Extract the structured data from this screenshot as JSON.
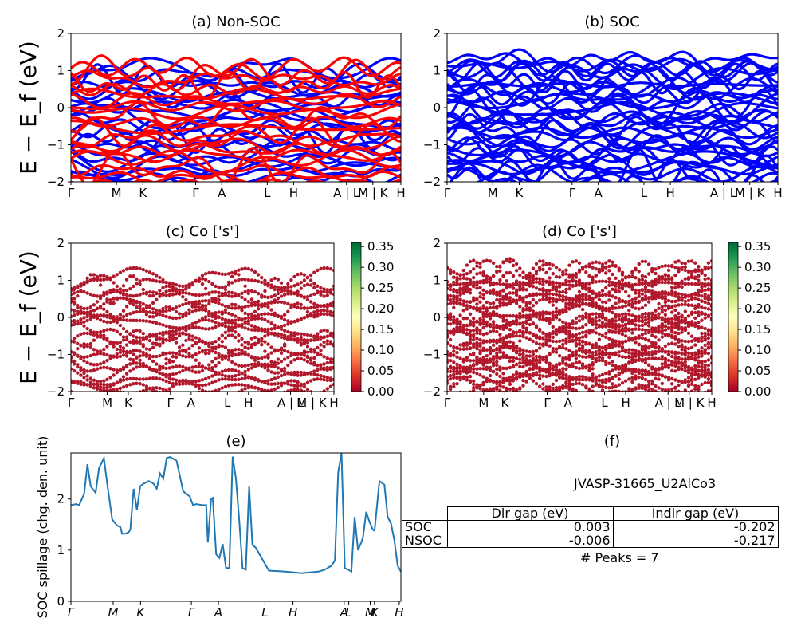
{
  "figure": {
    "jid": "JVASP-31665_U2AlCo3",
    "peaks_label": "# Peaks = 7"
  },
  "colors": {
    "nsoc_up": "#0000ff",
    "nsoc_dn": "#ff0000",
    "soc": "#0000ff",
    "spillage": "#1f77b4"
  },
  "chart_data": [
    {
      "id": "a",
      "type": "line",
      "title": "(a) Non-SOC",
      "ylabel": "E − E_f (eV)",
      "ylim": [
        -2,
        2
      ],
      "yticks": [
        "−2",
        "−1",
        "0",
        "1",
        "2"
      ],
      "xticks": [
        {
          "x": 0.0,
          "label": "Γ"
        },
        {
          "x": 0.138,
          "label": "M"
        },
        {
          "x": 0.218,
          "label": "K"
        },
        {
          "x": 0.378,
          "label": "Γ"
        },
        {
          "x": 0.457,
          "label": "A"
        },
        {
          "x": 0.595,
          "label": "L"
        },
        {
          "x": 0.675,
          "label": "H"
        },
        {
          "x": 0.835,
          "label": "A | L"
        },
        {
          "x": 0.915,
          "label": "M | K"
        },
        {
          "x": 1.0,
          "label": "H"
        }
      ],
      "series": [
        {
          "color_key": "nsoc_up"
        },
        {
          "color_key": "nsoc_dn"
        }
      ]
    },
    {
      "id": "b",
      "type": "line",
      "title": "(b) SOC",
      "ylim": [
        -2,
        2
      ],
      "yticks": [
        "−2",
        "−1",
        "0",
        "1",
        "2"
      ],
      "xticks": [
        {
          "x": 0.0,
          "label": "Γ"
        },
        {
          "x": 0.138,
          "label": "M"
        },
        {
          "x": 0.218,
          "label": "K"
        },
        {
          "x": 0.378,
          "label": "Γ"
        },
        {
          "x": 0.457,
          "label": "A"
        },
        {
          "x": 0.595,
          "label": "L"
        },
        {
          "x": 0.675,
          "label": "H"
        },
        {
          "x": 0.835,
          "label": "A | L"
        },
        {
          "x": 0.915,
          "label": "M | K"
        },
        {
          "x": 1.0,
          "label": "H"
        }
      ]
    },
    {
      "id": "c",
      "type": "scatter",
      "title": "(c)  Co ['s']",
      "ylabel": "E − E_f (eV)",
      "ylim": [
        -2,
        2
      ],
      "yticks": [
        "−2",
        "−1",
        "0",
        "1",
        "2"
      ],
      "xticks": [
        {
          "x": 0.0,
          "label": "Γ"
        },
        {
          "x": 0.138,
          "label": "M"
        },
        {
          "x": 0.218,
          "label": "K"
        },
        {
          "x": 0.378,
          "label": "Γ"
        },
        {
          "x": 0.457,
          "label": "A"
        },
        {
          "x": 0.595,
          "label": "L"
        },
        {
          "x": 0.675,
          "label": "H"
        },
        {
          "x": 0.835,
          "label": "A | L"
        },
        {
          "x": 0.915,
          "label": "M | K"
        },
        {
          "x": 1.0,
          "label": "H"
        }
      ],
      "colorbar": {
        "range": [
          0,
          0.36
        ],
        "ticks": [
          "0.00",
          "0.05",
          "0.10",
          "0.15",
          "0.20",
          "0.25",
          "0.30",
          "0.35"
        ]
      }
    },
    {
      "id": "d",
      "type": "scatter",
      "title": "(d) Co ['s']",
      "ylim": [
        -2,
        2
      ],
      "yticks": [
        "−2",
        "−1",
        "0",
        "1",
        "2"
      ],
      "xticks": [
        {
          "x": 0.0,
          "label": "Γ"
        },
        {
          "x": 0.138,
          "label": "M"
        },
        {
          "x": 0.218,
          "label": "K"
        },
        {
          "x": 0.378,
          "label": "Γ"
        },
        {
          "x": 0.457,
          "label": "A"
        },
        {
          "x": 0.595,
          "label": "L"
        },
        {
          "x": 0.675,
          "label": "H"
        },
        {
          "x": 0.835,
          "label": "A | L"
        },
        {
          "x": 0.915,
          "label": "M | K"
        },
        {
          "x": 1.0,
          "label": "H"
        }
      ],
      "colorbar": {
        "range": [
          0,
          0.36
        ],
        "ticks": [
          "0.00",
          "0.05",
          "0.10",
          "0.15",
          "0.20",
          "0.25",
          "0.30",
          "0.35"
        ]
      }
    },
    {
      "id": "e",
      "type": "line",
      "title": "(e)",
      "ylabel": "SOC spillage (chg. den. unit)",
      "ylim": [
        0,
        2.9
      ],
      "yticks": [
        0,
        1,
        2
      ],
      "xticks": [
        {
          "x": 0.0,
          "label": "Γ"
        },
        {
          "x": 0.128,
          "label": "M"
        },
        {
          "x": 0.211,
          "label": "K"
        },
        {
          "x": 0.365,
          "label": "Γ"
        },
        {
          "x": 0.447,
          "label": "A"
        },
        {
          "x": 0.588,
          "label": "L"
        },
        {
          "x": 0.673,
          "label": "H"
        },
        {
          "x": 0.828,
          "label": "A"
        },
        {
          "x": 0.842,
          "label": "L"
        },
        {
          "x": 0.907,
          "label": "M"
        },
        {
          "x": 0.92,
          "label": "K"
        },
        {
          "x": 0.995,
          "label": "H"
        }
      ],
      "x": [
        0,
        0.015,
        0.025,
        0.04,
        0.05,
        0.06,
        0.075,
        0.085,
        0.1,
        0.11,
        0.125,
        0.14,
        0.15,
        0.155,
        0.165,
        0.175,
        0.18,
        0.19,
        0.2,
        0.21,
        0.22,
        0.235,
        0.24,
        0.25,
        0.26,
        0.27,
        0.28,
        0.29,
        0.3,
        0.32,
        0.34,
        0.36,
        0.37,
        0.38,
        0.39,
        0.4,
        0.41,
        0.415,
        0.425,
        0.43,
        0.44,
        0.45,
        0.46,
        0.47,
        0.48,
        0.49,
        0.5,
        0.51,
        0.52,
        0.53,
        0.54,
        0.55,
        0.56,
        0.6,
        0.65,
        0.7,
        0.75,
        0.77,
        0.79,
        0.8,
        0.81,
        0.82,
        0.83,
        0.84,
        0.85,
        0.86,
        0.87,
        0.88,
        0.885,
        0.895,
        0.905,
        0.915,
        0.92,
        0.935,
        0.95,
        0.96,
        0.97,
        0.98,
        0.99,
        1.0
      ],
      "values": [
        1.88,
        1.9,
        1.88,
        2.1,
        2.68,
        2.25,
        2.12,
        2.6,
        2.8,
        2.3,
        1.6,
        1.48,
        1.45,
        1.32,
        1.32,
        1.35,
        1.4,
        2.2,
        1.78,
        2.25,
        2.3,
        2.35,
        2.34,
        2.3,
        2.2,
        2.5,
        2.4,
        2.8,
        2.82,
        2.75,
        2.15,
        2.05,
        1.88,
        1.9,
        1.89,
        1.88,
        1.88,
        1.15,
        2.0,
        2.02,
        0.92,
        0.85,
        1.12,
        0.65,
        0.65,
        2.83,
        2.4,
        1.6,
        0.65,
        0.62,
        2.25,
        1.1,
        1.05,
        0.6,
        0.58,
        0.55,
        0.58,
        0.62,
        0.7,
        0.8,
        2.52,
        2.9,
        0.65,
        0.62,
        0.58,
        1.65,
        1.0,
        1.15,
        1.25,
        1.75,
        1.55,
        1.4,
        1.38,
        2.35,
        2.28,
        1.65,
        1.52,
        1.2,
        0.7,
        0.58
      ]
    },
    {
      "id": "f",
      "type": "table",
      "title": "(f)",
      "columns": [
        "",
        "Dir gap (eV)",
        "Indir gap (eV)"
      ],
      "rows": [
        [
          "SOC",
          "0.003",
          "-0.202"
        ],
        [
          "NSOC",
          "-0.006",
          "-0.217"
        ]
      ]
    }
  ]
}
